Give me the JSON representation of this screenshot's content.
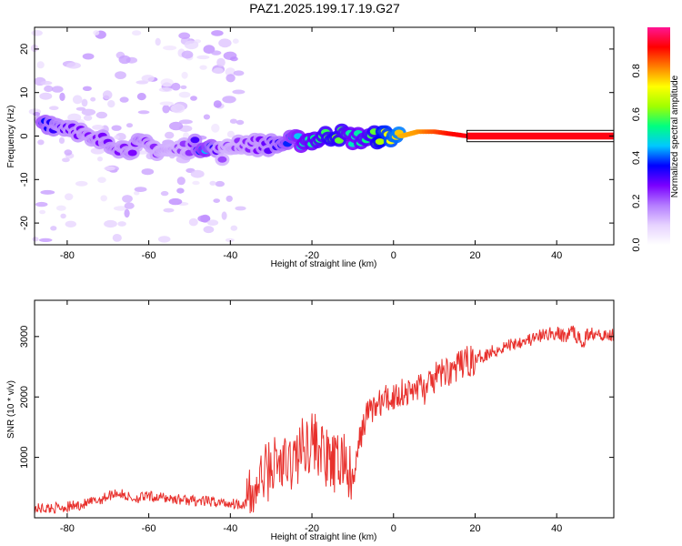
{
  "figure": {
    "title": "PAZ1.2025.199.17.19.G27"
  },
  "chart_data": [
    {
      "type": "heatmap",
      "title": "PAZ1.2025.199.17.19.G27",
      "xlabel": "Height of straight line (km)",
      "ylabel": "Frequency (Hz)",
      "xlim": [
        -88,
        54
      ],
      "ylim": [
        -25,
        25
      ],
      "xticks": [
        -80,
        -60,
        -40,
        -20,
        0,
        20,
        40
      ],
      "yticks": [
        -20,
        -10,
        0,
        10,
        20
      ],
      "colorbar": {
        "label": "Normalized spectral amplitude",
        "range": [
          0,
          1
        ],
        "ticks": [
          0.0,
          0.2,
          0.4,
          0.6,
          0.8
        ],
        "tick_labels": [
          "0.0",
          "0.2",
          "0.4",
          "0.6",
          "0.8"
        ],
        "colormap": [
          "#ffffff",
          "#e6d2ff",
          "#b47cff",
          "#7a00ff",
          "#0000ff",
          "#00c8ff",
          "#00ff80",
          "#a0ff00",
          "#ffff00",
          "#ff8000",
          "#ff0000",
          "#ff1493"
        ]
      },
      "ridge": [
        {
          "h": -86,
          "f": 3.5,
          "a": 0.38
        },
        {
          "h": -82,
          "f": 2.5,
          "a": 0.3
        },
        {
          "h": -78,
          "f": 2.0,
          "a": 0.28
        },
        {
          "h": -74,
          "f": -1.5,
          "a": 0.26
        },
        {
          "h": -70,
          "f": -1.0,
          "a": 0.28
        },
        {
          "h": -66,
          "f": -3.0,
          "a": 0.26
        },
        {
          "h": -62,
          "f": -2.0,
          "a": 0.28
        },
        {
          "h": -58,
          "f": -3.0,
          "a": 0.24
        },
        {
          "h": -54,
          "f": -3.5,
          "a": 0.22
        },
        {
          "h": -50,
          "f": -2.5,
          "a": 0.24
        },
        {
          "h": -46,
          "f": -2.0,
          "a": 0.45
        },
        {
          "h": -42,
          "f": -4.0,
          "a": 0.22
        },
        {
          "h": -38,
          "f": -1.5,
          "a": 0.24
        },
        {
          "h": -34,
          "f": -2.0,
          "a": 0.26
        },
        {
          "h": -30,
          "f": -2.0,
          "a": 0.3
        },
        {
          "h": -26,
          "f": -1.5,
          "a": 0.38
        },
        {
          "h": -22,
          "f": -1.0,
          "a": 0.5
        },
        {
          "h": -18,
          "f": -0.5,
          "a": 0.55
        },
        {
          "h": -14,
          "f": 0.5,
          "a": 0.62
        },
        {
          "h": -10,
          "f": -0.5,
          "a": 0.5
        },
        {
          "h": -6,
          "f": -0.5,
          "a": 0.55
        },
        {
          "h": -2,
          "f": 0.0,
          "a": 0.7
        },
        {
          "h": 2,
          "f": 0.0,
          "a": 0.78
        },
        {
          "h": 6,
          "f": 1.0,
          "a": 0.8
        },
        {
          "h": 10,
          "f": 1.0,
          "a": 0.85
        },
        {
          "h": 14,
          "f": 0.5,
          "a": 0.9
        },
        {
          "h": 18,
          "f": 0.0,
          "a": 0.92
        },
        {
          "h": 24,
          "f": 0.0,
          "a": 0.95
        },
        {
          "h": 30,
          "f": 0.0,
          "a": 0.95
        },
        {
          "h": 36,
          "f": 0.0,
          "a": 0.95
        },
        {
          "h": 42,
          "f": 0.0,
          "a": 0.95
        },
        {
          "h": 48,
          "f": 0.0,
          "a": 0.95
        },
        {
          "h": 54,
          "f": 0.0,
          "a": 0.95
        }
      ]
    },
    {
      "type": "line",
      "xlabel": "Height of straight line (km)",
      "ylabel": "SNR (10 * v/v)",
      "xlim": [
        -88,
        54
      ],
      "ylim": [
        0,
        3600
      ],
      "xticks": [
        -80,
        -60,
        -40,
        -20,
        0,
        20,
        40
      ],
      "yticks": [
        1000,
        2000,
        3000
      ],
      "line_color": "#e8302c",
      "x": [
        -88,
        -84,
        -80,
        -76,
        -72,
        -68,
        -64,
        -60,
        -56,
        -52,
        -48,
        -44,
        -40,
        -37,
        -35,
        -32,
        -29,
        -26,
        -24,
        -22,
        -20,
        -18,
        -16,
        -14,
        -12,
        -10,
        -8,
        -6,
        -4,
        -2,
        0,
        2,
        4,
        6,
        8,
        10,
        12,
        14,
        16,
        18,
        20,
        22,
        24,
        26,
        28,
        30,
        32,
        34,
        36,
        38,
        40,
        42,
        44,
        46,
        48,
        50,
        52,
        54
      ],
      "y": [
        150,
        160,
        180,
        220,
        300,
        420,
        320,
        350,
        330,
        300,
        280,
        260,
        240,
        230,
        300,
        700,
        900,
        850,
        1000,
        1200,
        1300,
        1150,
        900,
        850,
        1000,
        500,
        1400,
        1800,
        1850,
        1950,
        2000,
        2100,
        2050,
        2200,
        2100,
        2300,
        2400,
        2450,
        2500,
        2600,
        2600,
        2700,
        2750,
        2800,
        2850,
        2900,
        2950,
        2950,
        3000,
        3050,
        3050,
        3000,
        3100,
        2900,
        3050,
        3100,
        3000,
        3050
      ]
    }
  ]
}
